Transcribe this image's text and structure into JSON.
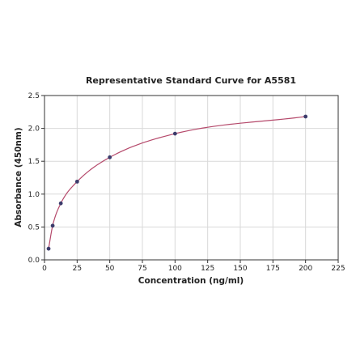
{
  "chart_data": {
    "type": "scatter",
    "title": "Representative Standard Curve for A5581",
    "xlabel": "Concentration (ng/ml)",
    "ylabel": "Absorbance (450nm)",
    "xlim": [
      0,
      225
    ],
    "ylim": [
      0,
      2.5
    ],
    "x_ticks": [
      0,
      25,
      50,
      75,
      100,
      125,
      150,
      175,
      200,
      225
    ],
    "y_ticks": [
      0.0,
      0.5,
      1.0,
      1.5,
      2.0,
      2.5
    ],
    "x_tick_labels": [
      "0",
      "25",
      "50",
      "75",
      "100",
      "125",
      "150",
      "175",
      "200",
      "225"
    ],
    "y_tick_labels": [
      "0.0",
      "0.5",
      "1.0",
      "1.5",
      "2.0",
      "2.5"
    ],
    "grid": true,
    "series": [
      {
        "points": [
          {
            "x": 3.125,
            "y": 0.17
          },
          {
            "x": 6.25,
            "y": 0.52
          },
          {
            "x": 12.5,
            "y": 0.86
          },
          {
            "x": 25,
            "y": 1.19
          },
          {
            "x": 50,
            "y": 1.56
          },
          {
            "x": 100,
            "y": 1.92
          },
          {
            "x": 200,
            "y": 2.18
          }
        ],
        "marker_color": "#3b3b6b",
        "fit_line_color": "#b5496b"
      }
    ]
  }
}
